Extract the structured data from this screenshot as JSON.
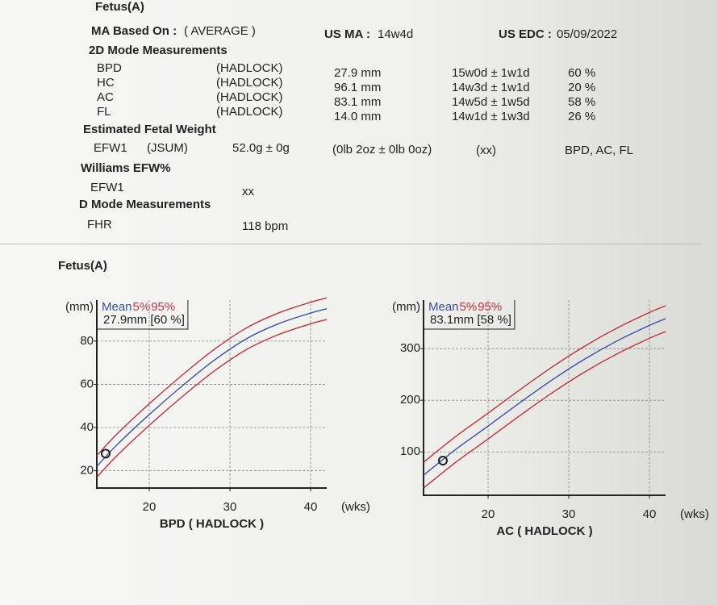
{
  "report": {
    "title": "Fetus(A)",
    "ma_based_on": {
      "label": "MA Based On :",
      "value": "( AVERAGE )"
    },
    "us_ma": {
      "label": "US MA :",
      "value": "14w4d"
    },
    "us_edc": {
      "label": "US EDC :",
      "value": "05/09/2022"
    },
    "section_2d": "2D Mode Measurements",
    "measurements": [
      {
        "name": "BPD",
        "method": "(HADLOCK)",
        "value": "27.9 mm",
        "ga": "15w0d ± 1w1d",
        "percentile": "60 %"
      },
      {
        "name": "HC",
        "method": "(HADLOCK)",
        "value": "96.1 mm",
        "ga": "14w3d ± 1w1d",
        "percentile": "20 %"
      },
      {
        "name": "AC",
        "method": "(HADLOCK)",
        "value": "83.1 mm",
        "ga": "14w5d ± 1w5d",
        "percentile": "58 %"
      },
      {
        "name": "FL",
        "method": "(HADLOCK)",
        "value": "14.0 mm",
        "ga": "14w1d ± 1w3d",
        "percentile": "26 %"
      }
    ],
    "efw_title": "Estimated Fetal Weight",
    "efw": {
      "name": "EFW1",
      "method": "(JSUM)",
      "value": "52.0g ± 0g",
      "imperial": "(0lb 2oz ± 0lb 0oz)",
      "extra": "(xx)",
      "params": "BPD, AC, FL"
    },
    "williams_title": "Williams EFW%",
    "williams": {
      "name": "EFW1",
      "value": "xx"
    },
    "d_mode_title": "D Mode Measurements",
    "fhr": {
      "name": "FHR",
      "value": "118 bpm"
    },
    "charts_title": "Fetus(A)"
  },
  "chart_data": [
    {
      "type": "line",
      "y_unit": "(mm)",
      "x_unit": "(wks)",
      "xlabel": "BPD ( HADLOCK )",
      "annotation": "27.9mm [60 %]",
      "x": [
        13.5,
        16,
        20,
        24,
        28,
        32,
        36,
        40,
        42
      ],
      "series": [
        {
          "name": "Mean",
          "color": "#3a4fa8",
          "values": [
            22,
            32,
            46,
            59,
            71,
            81,
            88,
            93,
            95
          ]
        },
        {
          "name": "5%",
          "color": "#c0303c",
          "values": [
            17,
            27,
            41,
            54,
            66,
            76,
            83,
            88,
            90
          ]
        },
        {
          "name": "95%",
          "color": "#c0303c",
          "values": [
            27,
            37,
            51,
            64,
            76,
            86,
            93,
            98,
            100
          ]
        }
      ],
      "point": {
        "x": 14.6,
        "y": 27.9
      },
      "xlim": [
        13.5,
        42
      ],
      "ylim": [
        12,
        99
      ],
      "xticks": [
        20,
        30,
        40
      ],
      "yticks": [
        20,
        40,
        60,
        80
      ],
      "grid": true
    },
    {
      "type": "line",
      "y_unit": "(mm)",
      "x_unit": "(wks)",
      "xlabel": "AC ( HADLOCK )",
      "annotation": "83.1mm [58 %]",
      "x": [
        12,
        16,
        20,
        24,
        28,
        32,
        36,
        40,
        42
      ],
      "series": [
        {
          "name": "Mean",
          "color": "#3a4fa8",
          "values": [
            55,
            105,
            150,
            196,
            240,
            280,
            315,
            345,
            358
          ]
        },
        {
          "name": "5%",
          "color": "#c0303c",
          "values": [
            30,
            80,
            125,
            171,
            215,
            255,
            290,
            320,
            333
          ]
        },
        {
          "name": "95%",
          "color": "#c0303c",
          "values": [
            80,
            130,
            175,
            221,
            265,
            305,
            340,
            370,
            383
          ]
        }
      ],
      "point": {
        "x": 14.4,
        "y": 83.1
      },
      "xlim": [
        12,
        42
      ],
      "ylim": [
        16,
        394
      ],
      "xticks": [
        20,
        30,
        40
      ],
      "yticks": [
        100,
        200,
        300
      ],
      "grid": true
    }
  ]
}
